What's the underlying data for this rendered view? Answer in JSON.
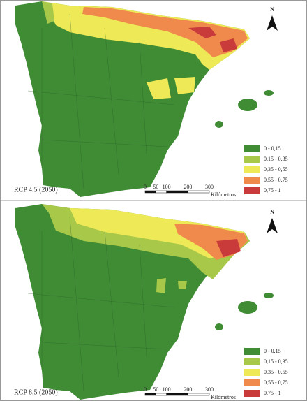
{
  "panels": [
    {
      "label": "RCP 4.5 (2050)",
      "north": "N",
      "legend": [
        {
          "label": "0 - 0,15",
          "color": "#3f8c35"
        },
        {
          "label": "0,15 - 0,35",
          "color": "#a8c84a"
        },
        {
          "label": "0,35 - 0,55",
          "color": "#eeea57"
        },
        {
          "label": "0,55 - 0,75",
          "color": "#f08a4c"
        },
        {
          "label": "0,75 - 1",
          "color": "#c93b3b"
        }
      ],
      "scale": {
        "ticks": [
          0,
          50,
          100,
          200,
          300
        ],
        "unit": "Kilómetros"
      }
    },
    {
      "label": "RCP 8.5 (2050)",
      "north": "N",
      "legend": [
        {
          "label": "0 - 0,15",
          "color": "#3f8c35"
        },
        {
          "label": "0,15 - 0,35",
          "color": "#a8c84a"
        },
        {
          "label": "0,35 - 0,55",
          "color": "#eeea57"
        },
        {
          "label": "0,55 - 0,75",
          "color": "#f08a4c"
        },
        {
          "label": "0,75 - 1",
          "color": "#c93b3b"
        }
      ],
      "scale": {
        "ticks": [
          0,
          50,
          100,
          200,
          300
        ],
        "unit": "Kilómetros"
      }
    }
  ]
}
